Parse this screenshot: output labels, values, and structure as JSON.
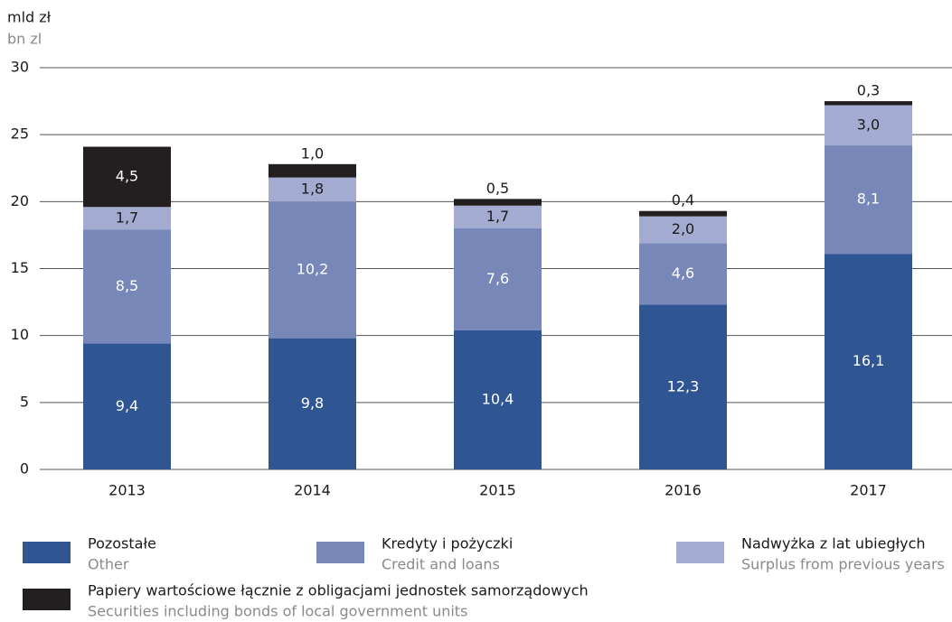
{
  "chart_data": {
    "type": "stacked_bar",
    "y_label": "mld zł",
    "y_label_en": "bn zl",
    "categories": [
      "2013",
      "2014",
      "2015",
      "2016",
      "2017"
    ],
    "ylim": [
      0,
      30
    ],
    "yticks": [
      0,
      5,
      10,
      15,
      20,
      25,
      30
    ],
    "grid": true,
    "series": [
      {
        "name": "Pozostałe",
        "name_en": "Other",
        "color": "#2f5592",
        "label_color": "#ffffff",
        "values": [
          9.4,
          9.8,
          10.4,
          12.3,
          16.1
        ],
        "value_labels": [
          "9,4",
          "9,8",
          "10,4",
          "12,3",
          "16,1"
        ]
      },
      {
        "name": "Kredyty i pożyczki",
        "name_en": "Credit and loans",
        "color": "#7788b8",
        "label_color": "#ffffff",
        "values": [
          8.5,
          10.2,
          7.6,
          4.6,
          8.1
        ],
        "value_labels": [
          "8,5",
          "10,2",
          "7,6",
          "4,6",
          "8,1"
        ]
      },
      {
        "name": "Nadwyżka z lat ubiegłych",
        "name_en": "Surplus from previous years",
        "color": "#a4abd1",
        "label_color": "#1a1a1a",
        "values": [
          1.7,
          1.8,
          1.7,
          2.0,
          3.0
        ],
        "value_labels": [
          "1,7",
          "1,8",
          "1,7",
          "2,0",
          "3,0"
        ]
      },
      {
        "name": "Papiery wartościowe łącznie z obligacjami jednostek samorządowych",
        "name_en": "Securities including bonds of local government units",
        "color": "#231f20",
        "label_color": "#ffffff",
        "values": [
          4.5,
          1.0,
          0.5,
          0.4,
          0.3
        ],
        "value_labels": [
          "4,5",
          "1,0",
          "0,5",
          "0,4",
          "0,3"
        ]
      }
    ]
  }
}
